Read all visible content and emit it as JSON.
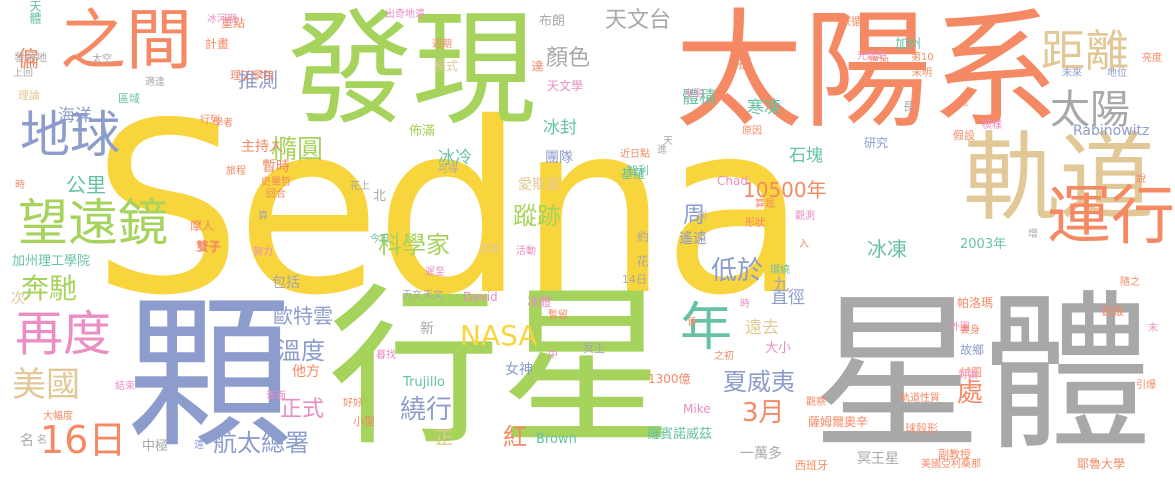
{
  "palette": {
    "yellow": "#f8d53c",
    "blue": "#8c9ccc",
    "green": "#a5d35c",
    "orange": "#f58964",
    "gray": "#a8a8a8",
    "tan": "#e2c896",
    "pink": "#ea8ec4",
    "teal": "#67c2a5"
  },
  "words": [
    "Sedna",
    "行星",
    "顆",
    "星體",
    "太陽系",
    "發現",
    "軌道",
    "之間",
    "運行",
    "地球",
    "望遠鏡",
    "再度",
    "距離",
    "太陽",
    "年",
    "美國",
    "16日",
    "NASA",
    "奔馳",
    "低於",
    "航太總署",
    "3月",
    "夏威夷",
    "科學家",
    "蹤跡",
    "天文台",
    "橢圓",
    "繞行",
    "處",
    "冰凍",
    "公里",
    "10500年",
    "溫度",
    "歐特雲",
    "正式",
    "顏色",
    "推測",
    "海洋",
    "周",
    "紅",
    "遠去",
    "直徑",
    "冰封",
    "冰冷",
    "體積",
    "寒凍",
    "石塊",
    "團隊",
    "主持人",
    "暫時",
    "Rabinowitz",
    "Trujillo",
    "Brown",
    "Chad",
    "Mike",
    "David",
    "冥王星",
    "一萬多",
    "2003年",
    "加州理工學院",
    "羅賓諾威茲",
    "薩姆爾奧辛",
    "女神",
    "大小",
    "1300億",
    "故鄉",
    "帕洛瑪",
    "包括",
    "研究",
    "摩人",
    "愛斯基",
    "基羅",
    "天文學",
    "模式",
    "遙遠",
    "理工學院",
    "重點",
    "計畫",
    "區域",
    "理論",
    "偏",
    "天體",
    "布朗",
    "加州",
    "發源地",
    "佈滿",
    "達",
    "提",
    "他方",
    "智利",
    "雙子",
    "雙子",
    "名",
    "次",
    "九",
    "正",
    "花",
    "約",
    "新",
    "北",
    "中極",
    "小型",
    "好好",
    "西班牙",
    "美國亞利桑那",
    "耶魯大學",
    "副教授",
    "球殼形",
    "軌道性質",
    "試圖",
    "外圍",
    "超級",
    "冰河期",
    "出奇地遠",
    "依循",
    "光臨時",
    "增加",
    "未來",
    "地位",
    "長",
    "假設",
    "模樣",
    "亮度",
    "第10",
    "未明",
    "行列",
    "學者",
    "旅程",
    "史畢哲",
    "回合",
    "近日點",
    "可得",
    "身影",
    "原因",
    "今日",
    "證實",
    "遲至",
    "暮找",
    "表面",
    "之初",
    "結束",
    "大幅度",
    "太空",
    "上回",
    "適逢",
    "週期",
    "天",
    "努力",
    "討論",
    "引爆",
    "說",
    "時",
    "末",
    "中",
    "名",
    "環繞",
    "觀測",
    "形狀",
    "算是",
    "花上",
    "活動",
    "算",
    "劍",
    "入",
    "隨之",
    "妻身",
    "冰體",
    "暫留",
    "14日",
    "天文",
    "皆",
    "冥王",
    "天文",
    "遠",
    "進",
    "觀察",
    "時",
    "增",
    "近"
  ]
}
